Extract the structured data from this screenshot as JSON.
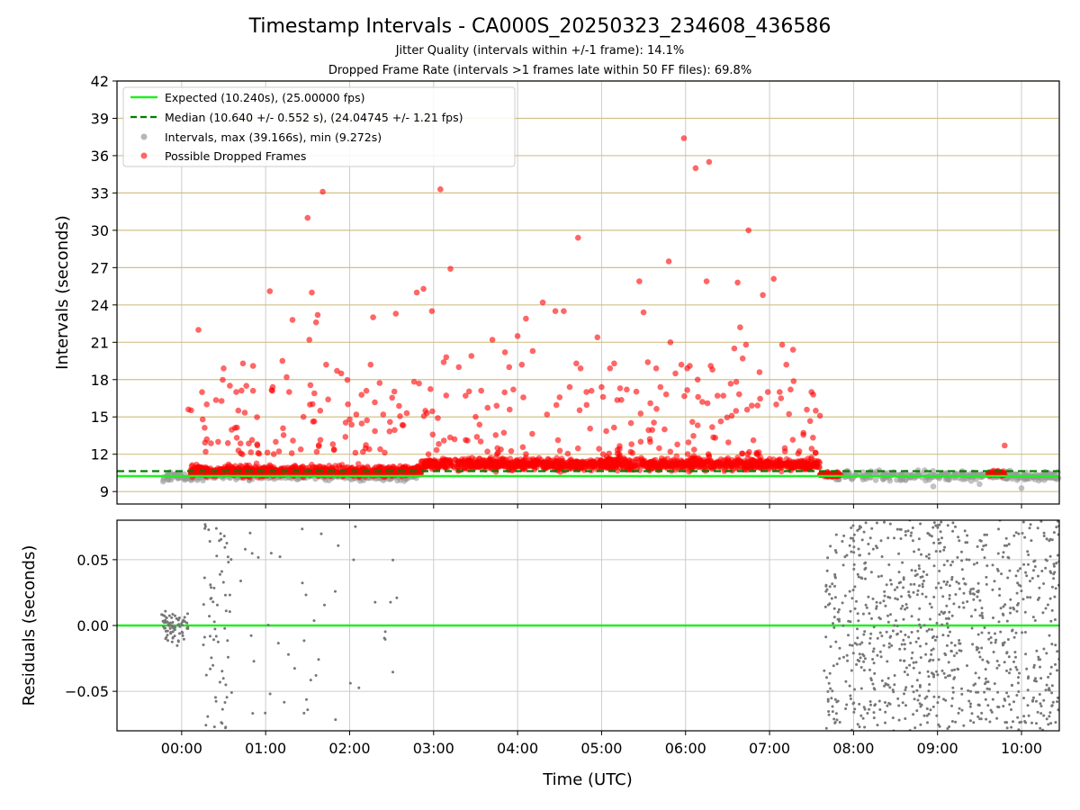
{
  "figure": {
    "title": "Timestamp Intervals - CA000S_20250323_234608_436586",
    "subtitle1": "Jitter Quality (intervals within +/-1 frame): 14.1%",
    "subtitle2": "Dropped Frame Rate (intervals >1 frames late within 50 FF files): 69.8%"
  },
  "chart_data": [
    {
      "type": "scatter",
      "id": "intervals",
      "ylabel": "Intervals (seconds)",
      "ylim": [
        8,
        42
      ],
      "yticks": [
        9,
        12,
        15,
        18,
        21,
        24,
        27,
        30,
        33,
        36,
        39,
        42
      ],
      "xlim_hours": [
        -0.77,
        10.45
      ],
      "xticks_hours": [
        0,
        1,
        2,
        3,
        4,
        5,
        6,
        7,
        8,
        9,
        10
      ],
      "grid": "vertical gridlines at x ticks; horizontal tan lines at y ticks",
      "legend_position": "top-left",
      "colors": {
        "expected": "#22ee22",
        "median": "#008000",
        "intervals": "#999999",
        "dropped": "#ff0000",
        "ygrid": "#d2c08a"
      },
      "expected": {
        "label": "Expected (10.240s), (25.00000 fps)",
        "value": 10.24
      },
      "median": {
        "label": "Median (10.640 +/- 0.552 s), (24.04745 +/- 1.21 fps)",
        "value": 10.64
      },
      "intervals": {
        "label": "Intervals, max (39.166s), min (9.272s)",
        "max": 39.166,
        "min": 9.272,
        "segments": [
          {
            "x0": -0.25,
            "x1": 0.1,
            "center": 10.2,
            "spread": 0.3
          },
          {
            "x0": 0.1,
            "x1": 2.8,
            "center": 10.25,
            "spread": 0.3
          },
          {
            "x0": 7.65,
            "x1": 10.45,
            "center": 10.25,
            "spread": 0.35
          }
        ],
        "points": [
          [
            -0.22,
            9.8
          ],
          [
            10.0,
            9.272
          ],
          [
            8.95,
            9.4
          ],
          [
            9.5,
            9.6
          ],
          [
            2.4,
            9.9
          ]
        ]
      },
      "dropped": {
        "label": "Possible Dropped Frames",
        "bands": [
          {
            "x0": 0.1,
            "x1": 2.85,
            "center": 10.65,
            "spread": 0.4
          },
          {
            "x0": 2.85,
            "x1": 7.6,
            "center": 11.2,
            "spread": 0.45
          },
          {
            "x0": 7.6,
            "x1": 7.85,
            "center": 10.35,
            "spread": 0.15
          },
          {
            "x0": 9.6,
            "x1": 9.8,
            "center": 10.45,
            "spread": 0.2
          }
        ],
        "points": [
          [
            0.08,
            15.6
          ],
          [
            0.2,
            22.0
          ],
          [
            0.25,
            14.8
          ],
          [
            0.3,
            13.2
          ],
          [
            0.5,
            18.9
          ],
          [
            0.55,
            12.9
          ],
          [
            0.65,
            17.0
          ],
          [
            0.73,
            19.3
          ],
          [
            0.77,
            17.5
          ],
          [
            0.85,
            19.1
          ],
          [
            0.85,
            17.1
          ],
          [
            0.9,
            12.8
          ],
          [
            1.05,
            25.1
          ],
          [
            1.08,
            17.1
          ],
          [
            1.12,
            13.0
          ],
          [
            1.2,
            19.5
          ],
          [
            1.25,
            18.2
          ],
          [
            1.28,
            17.0
          ],
          [
            1.32,
            22.8
          ],
          [
            1.45,
            15.0
          ],
          [
            1.5,
            31.0
          ],
          [
            1.52,
            21.2
          ],
          [
            1.55,
            25.0
          ],
          [
            1.58,
            16.9
          ],
          [
            1.6,
            22.6
          ],
          [
            1.62,
            23.2
          ],
          [
            1.65,
            15.5
          ],
          [
            1.68,
            33.1
          ],
          [
            1.72,
            19.2
          ],
          [
            1.8,
            12.8
          ],
          [
            1.85,
            18.7
          ],
          [
            1.9,
            18.5
          ],
          [
            1.95,
            13.4
          ],
          [
            2.0,
            14.8
          ],
          [
            2.08,
            15.2
          ],
          [
            2.2,
            17.1
          ],
          [
            2.28,
            23.0
          ],
          [
            2.25,
            19.2
          ],
          [
            2.4,
            15.2
          ],
          [
            2.48,
            14.6
          ],
          [
            2.55,
            23.3
          ],
          [
            2.68,
            15.3
          ],
          [
            2.8,
            25.0
          ],
          [
            2.88,
            25.3
          ],
          [
            2.92,
            15.3
          ],
          [
            2.98,
            23.5
          ],
          [
            3.05,
            14.9
          ],
          [
            3.08,
            33.3
          ],
          [
            3.12,
            19.4
          ],
          [
            3.15,
            19.8
          ],
          [
            3.2,
            26.9
          ],
          [
            3.25,
            13.2
          ],
          [
            3.3,
            19.0
          ],
          [
            3.38,
            16.7
          ],
          [
            3.45,
            19.9
          ],
          [
            3.5,
            15.0
          ],
          [
            3.7,
            21.2
          ],
          [
            3.75,
            15.9
          ],
          [
            3.85,
            20.2
          ],
          [
            3.9,
            19.0
          ],
          [
            3.95,
            17.2
          ],
          [
            4.0,
            21.5
          ],
          [
            4.05,
            19.2
          ],
          [
            4.1,
            22.9
          ],
          [
            4.18,
            20.3
          ],
          [
            4.3,
            24.2
          ],
          [
            4.35,
            15.2
          ],
          [
            4.45,
            23.5
          ],
          [
            4.55,
            23.5
          ],
          [
            4.62,
            17.4
          ],
          [
            4.7,
            19.3
          ],
          [
            4.72,
            29.4
          ],
          [
            4.75,
            18.9
          ],
          [
            4.82,
            17.0
          ],
          [
            4.88,
            17.1
          ],
          [
            4.95,
            21.4
          ],
          [
            5.0,
            17.4
          ],
          [
            5.1,
            18.9
          ],
          [
            5.15,
            19.3
          ],
          [
            5.22,
            17.3
          ],
          [
            5.3,
            17.2
          ],
          [
            5.35,
            14.5
          ],
          [
            5.45,
            25.9
          ],
          [
            5.5,
            23.4
          ],
          [
            5.55,
            19.4
          ],
          [
            5.58,
            16.1
          ],
          [
            5.65,
            18.9
          ],
          [
            5.7,
            17.4
          ],
          [
            5.75,
            14.0
          ],
          [
            5.8,
            27.5
          ],
          [
            5.82,
            21.0
          ],
          [
            5.88,
            18.5
          ],
          [
            5.95,
            19.2
          ],
          [
            5.98,
            37.4
          ],
          [
            6.02,
            18.9
          ],
          [
            6.05,
            19.1
          ],
          [
            6.12,
            35.0
          ],
          [
            6.15,
            16.6
          ],
          [
            6.2,
            16.2
          ],
          [
            6.25,
            25.9
          ],
          [
            6.28,
            35.5
          ],
          [
            6.3,
            19.1
          ],
          [
            6.32,
            18.8
          ],
          [
            6.38,
            16.7
          ],
          [
            6.45,
            16.7
          ],
          [
            6.55,
            15.1
          ],
          [
            6.58,
            20.5
          ],
          [
            6.62,
            25.8
          ],
          [
            6.65,
            22.2
          ],
          [
            6.68,
            19.7
          ],
          [
            6.72,
            20.8
          ],
          [
            6.75,
            30.0
          ],
          [
            6.88,
            18.6
          ],
          [
            6.92,
            24.8
          ],
          [
            6.98,
            17.0
          ],
          [
            7.05,
            26.1
          ],
          [
            7.08,
            16.0
          ],
          [
            7.12,
            17.0
          ],
          [
            7.15,
            20.8
          ],
          [
            7.2,
            19.2
          ],
          [
            7.25,
            17.2
          ],
          [
            7.28,
            20.4
          ],
          [
            7.5,
            17.0
          ],
          [
            7.52,
            16.8
          ],
          [
            7.55,
            15.5
          ],
          [
            7.6,
            15.1
          ],
          [
            9.8,
            12.7
          ]
        ]
      }
    },
    {
      "type": "scatter",
      "id": "residuals",
      "ylabel": "Residuals (seconds)",
      "xlabel": "Time (UTC)",
      "ylim": [
        -0.08,
        0.08
      ],
      "yticks": [
        -0.05,
        0.0,
        0.05
      ],
      "ytick_labels": [
        "−0.05",
        "0.00",
        "0.05"
      ],
      "xtick_labels": [
        "00:00",
        "01:00",
        "02:00",
        "03:00",
        "04:00",
        "05:00",
        "06:00",
        "07:00",
        "08:00",
        "09:00",
        "10:00"
      ],
      "zero_line_color": "#22ee22",
      "point_color": "#777777",
      "clusters": [
        {
          "x0": -0.25,
          "x1": 0.08,
          "n": 75,
          "spread": 0.022
        },
        {
          "x0": 0.25,
          "x1": 0.6,
          "n": 65,
          "spread": 0.08
        },
        {
          "x0": 0.6,
          "x1": 2.6,
          "n": 45,
          "spread": 0.08
        },
        {
          "x0": 7.65,
          "x1": 10.45,
          "n": 900,
          "spread": 0.08
        }
      ]
    }
  ]
}
